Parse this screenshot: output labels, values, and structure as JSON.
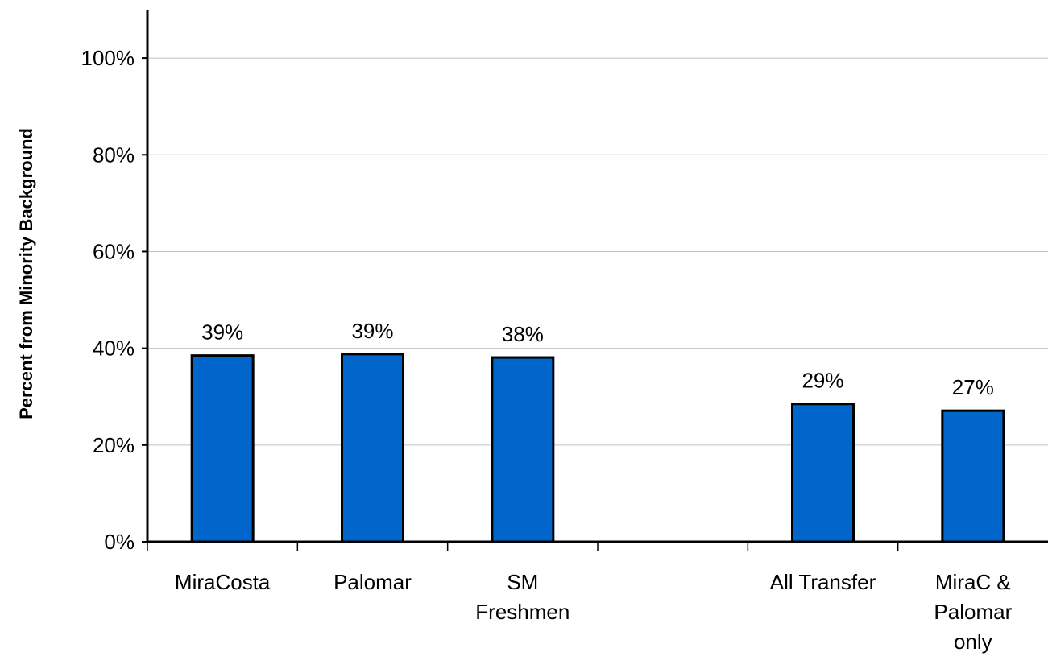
{
  "chart_data": {
    "type": "bar",
    "title": "",
    "xlabel": "",
    "ylabel": "Percent from Minority Background",
    "ylim": [
      0,
      1.1
    ],
    "yticks": [
      0,
      0.2,
      0.4,
      0.6,
      0.8,
      1.0
    ],
    "ytick_labels": [
      "0%",
      "20%",
      "40%",
      "60%",
      "80%",
      "100%"
    ],
    "grid": true,
    "legend": "none",
    "categories": [
      [
        "MiraCosta"
      ],
      [
        "Palomar"
      ],
      [
        "SM",
        "Freshmen"
      ],
      [
        ""
      ],
      [
        "All Transfer"
      ],
      [
        "MiraC &",
        "Palomar",
        "only"
      ]
    ],
    "values": [
      0.385,
      0.388,
      0.381,
      null,
      0.285,
      0.271
    ],
    "data_labels": [
      "39%",
      "39%",
      "38%",
      "",
      "29%",
      "27%"
    ],
    "bar_color": "#0066cc",
    "bar_edge_color": "#000000"
  }
}
